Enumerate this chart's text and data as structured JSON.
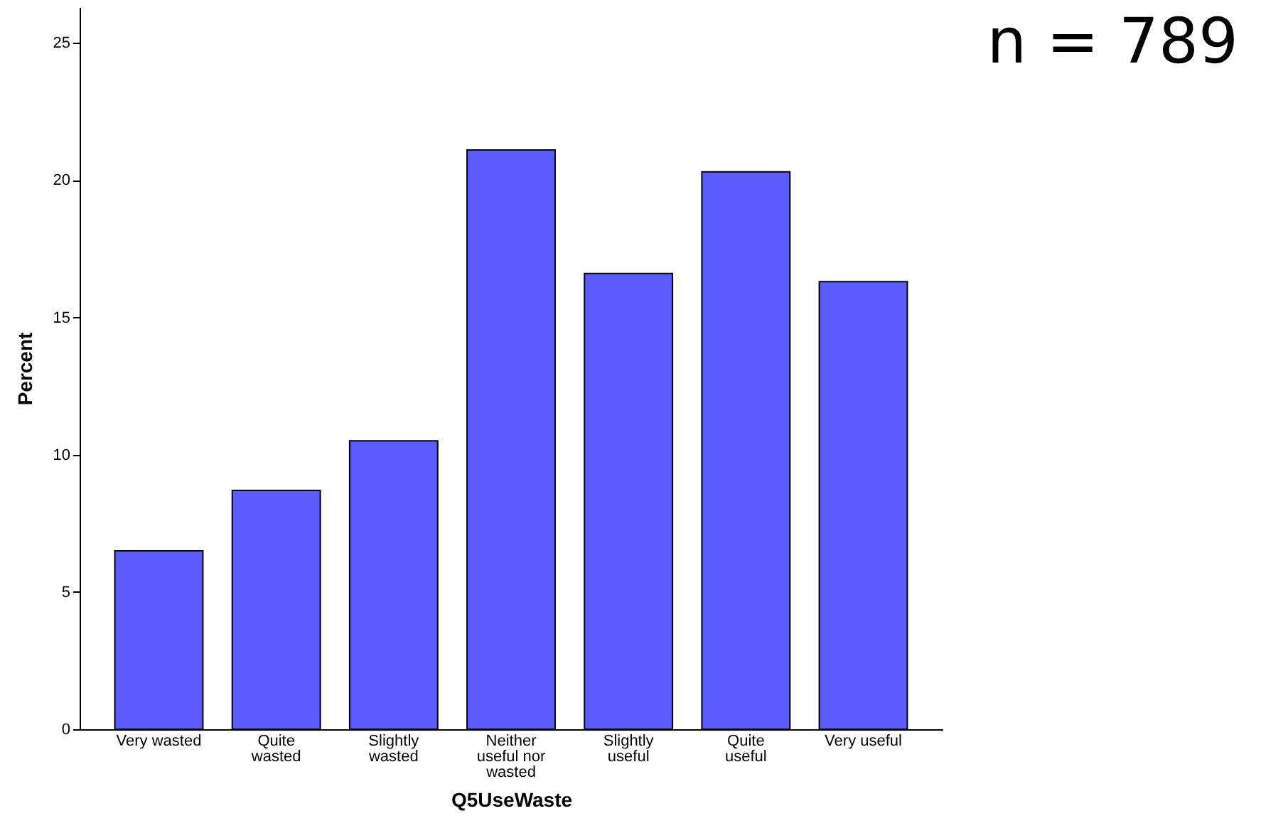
{
  "chart_data": {
    "type": "bar",
    "xlabel": "Q5UseWaste",
    "ylabel": "Percent",
    "categories": [
      "Very wasted",
      "Quite wasted",
      "Slightly wasted",
      "Neither useful nor wasted",
      "Slightly useful",
      "Quite useful",
      "Very useful"
    ],
    "values": [
      6.5,
      8.7,
      10.5,
      21.1,
      16.6,
      20.3,
      16.3
    ],
    "color": "#5b5bff",
    "ylim": [
      0,
      26.3
    ],
    "yticks": [
      0,
      5,
      10,
      15,
      20,
      25
    ],
    "grid": false,
    "annotations": [
      "n = 789"
    ]
  }
}
